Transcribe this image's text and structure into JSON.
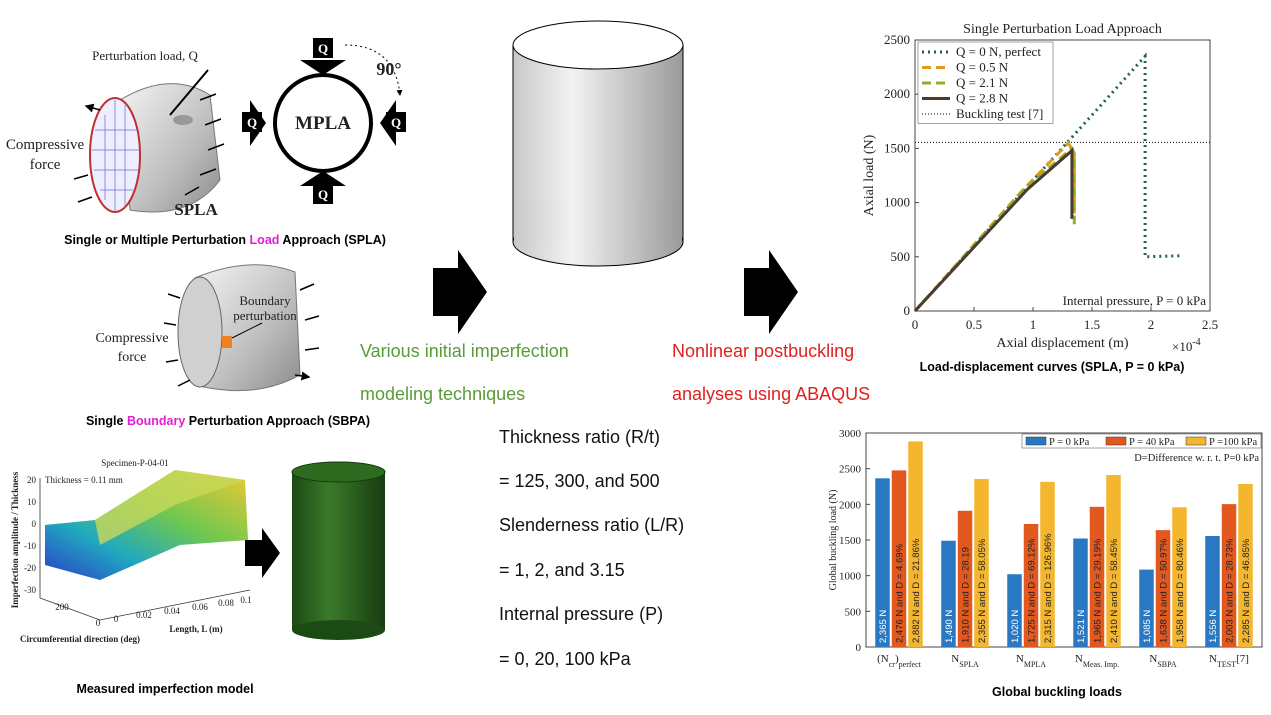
{
  "chart_data": [
    {
      "type": "line",
      "title": "Single Perturbation Load Approach",
      "x_label": "Axial displacement (m)",
      "x_multiplier": "×10",
      "x_multiplier_exponent": "-4",
      "y_label": "Axial load (N)",
      "xlim": [
        0,
        2.5
      ],
      "xticks": [
        0,
        0.5,
        1,
        1.5,
        2,
        2.5
      ],
      "ylim": [
        0,
        2500
      ],
      "yticks": [
        0,
        500,
        1000,
        1500,
        2000,
        2500
      ],
      "legend": "upper left",
      "series": [
        {
          "name": "Q = 0 N, perfect",
          "color": "#1f5f60",
          "style": "dotted",
          "x": [
            0,
            1.95,
            1.95,
            2.25
          ],
          "values": [
            0,
            2350,
            500,
            510
          ]
        },
        {
          "name": "Q = 0.5 N",
          "color": "#e39a1c",
          "style": "dashed",
          "x": [
            0,
            0.9,
            1.3,
            1.35,
            1.35
          ],
          "values": [
            0,
            1100,
            1550,
            1450,
            900
          ]
        },
        {
          "name": "Q = 2.1 N",
          "color": "#8fae2c",
          "style": "dashed",
          "x": [
            0,
            0.95,
            1.33,
            1.35,
            1.35
          ],
          "values": [
            0,
            1150,
            1500,
            1450,
            800
          ]
        },
        {
          "name": "Q = 2.8 N",
          "color": "#4a3a30",
          "style": "solid",
          "x": [
            0,
            0.95,
            1.33,
            1.33
          ],
          "values": [
            0,
            1120,
            1480,
            850
          ]
        }
      ],
      "reference_line": {
        "name": "Buckling test [7]",
        "value": 1556,
        "color": "#000000"
      },
      "annotation": "Internal pressure, P = 0 kPa",
      "caption": "Load-displacement curves (SPLA, P = 0 kPa)"
    },
    {
      "type": "bar",
      "y_label": "Global buckling load (N)",
      "ylim": [
        0,
        3000
      ],
      "yticks": [
        0,
        500,
        1000,
        1500,
        2000,
        2500,
        3000
      ],
      "legend": "upper right",
      "note": "D=Difference w. r. t. P=0 kPa",
      "categories": [
        {
          "text": "(N",
          "sub": "cr",
          "text2": ")",
          "sub2": "perfect"
        },
        {
          "text": "N",
          "sub": "SPLA"
        },
        {
          "text": "N",
          "sub": "MPLA"
        },
        {
          "text": "N",
          "sub": "Meas. Imp."
        },
        {
          "text": "N",
          "sub": "SBPA"
        },
        {
          "text": "N",
          "sub": "TEST",
          "text2": "[7]"
        }
      ],
      "series": [
        {
          "name": "P = 0 kPa",
          "color": "#2a78c2",
          "values": [
            2365,
            1490,
            1020,
            1521,
            1085,
            1556
          ],
          "value_labels": [
            "2,365 N",
            "1,490 N",
            "1,020 N",
            "1,521 N",
            "1,085 N",
            "1,556 N"
          ]
        },
        {
          "name": "P = 40 kPa",
          "color": "#e2581f",
          "values": [
            2476,
            1910,
            1725,
            1965,
            1638,
            2003
          ],
          "value_labels": [
            "2,476 N and D = 4.69%",
            "1,910 N and D = 28.19",
            "1,725 N and D = 69.12%",
            "1,965 N and D = 29.19%",
            "1,638 N and D = 50.97%",
            "2,003 N and D = 28.73%"
          ]
        },
        {
          "name": "P =100 kPa",
          "color": "#f4b52f",
          "values": [
            2882,
            2355,
            2315,
            2410,
            1958,
            2285
          ],
          "value_labels": [
            "2,882 N and D = 21.86%",
            "2,355 N and D = 58.05%",
            "2,315 N and D = 126.96%",
            "2,410 N and D = 58.45%",
            "1,958 N and D = 80.46%",
            "2,285 N and D = 46.85%"
          ]
        }
      ],
      "caption": "Global buckling loads"
    }
  ],
  "spla": {
    "perturbation_label": "Perturbation load, Q",
    "compressive_force": [
      "Compressive",
      "force"
    ],
    "name": "SPLA"
  },
  "mpla": {
    "q_labels": [
      "Q",
      "Q",
      "Q",
      "Q"
    ],
    "angle": "90°",
    "name": "MPLA"
  },
  "spla_caption": {
    "before": "Single or Multiple Perturbation ",
    "highlight": "Load",
    "after": " Approach (SPLA)"
  },
  "sbpa": {
    "compressive_force": [
      "Compressive",
      "force"
    ],
    "boundary": [
      "Boundary",
      "perturbation"
    ]
  },
  "sbpa_caption": {
    "before": "Single ",
    "highlight": "Boundary",
    "after": " Perturbation Approach (SBPA)"
  },
  "measured": {
    "title": "Specimen-P-04-01",
    "thickness": "Thickness = 0.11 mm",
    "z_label": "Imperfection amplitude / Thickness",
    "z_ticks": [
      "20",
      "10",
      "0",
      "-10",
      "-20",
      "-30"
    ],
    "circ_label": "Circumferential direction (deg)",
    "circ_ticks": [
      "200",
      "0"
    ],
    "length_label": "Length, L (m)",
    "length_ticks": [
      "0",
      "0.02",
      "0.04",
      "0.06",
      "0.08",
      "0.1"
    ],
    "caption": "Measured imperfection model"
  },
  "flow": {
    "step1": [
      "Various initial imperfection",
      "modeling techniques"
    ],
    "step2": [
      "Nonlinear postbuckling",
      "analyses using ABAQUS"
    ]
  },
  "parameters": [
    "Thickness ratio (R/t)",
    "= 125, 300, and 500",
    "Slenderness ratio (L/R)",
    "= 1, 2, and 3.15",
    "Internal pressure (P)",
    "= 0, 20, 100 kPa"
  ]
}
